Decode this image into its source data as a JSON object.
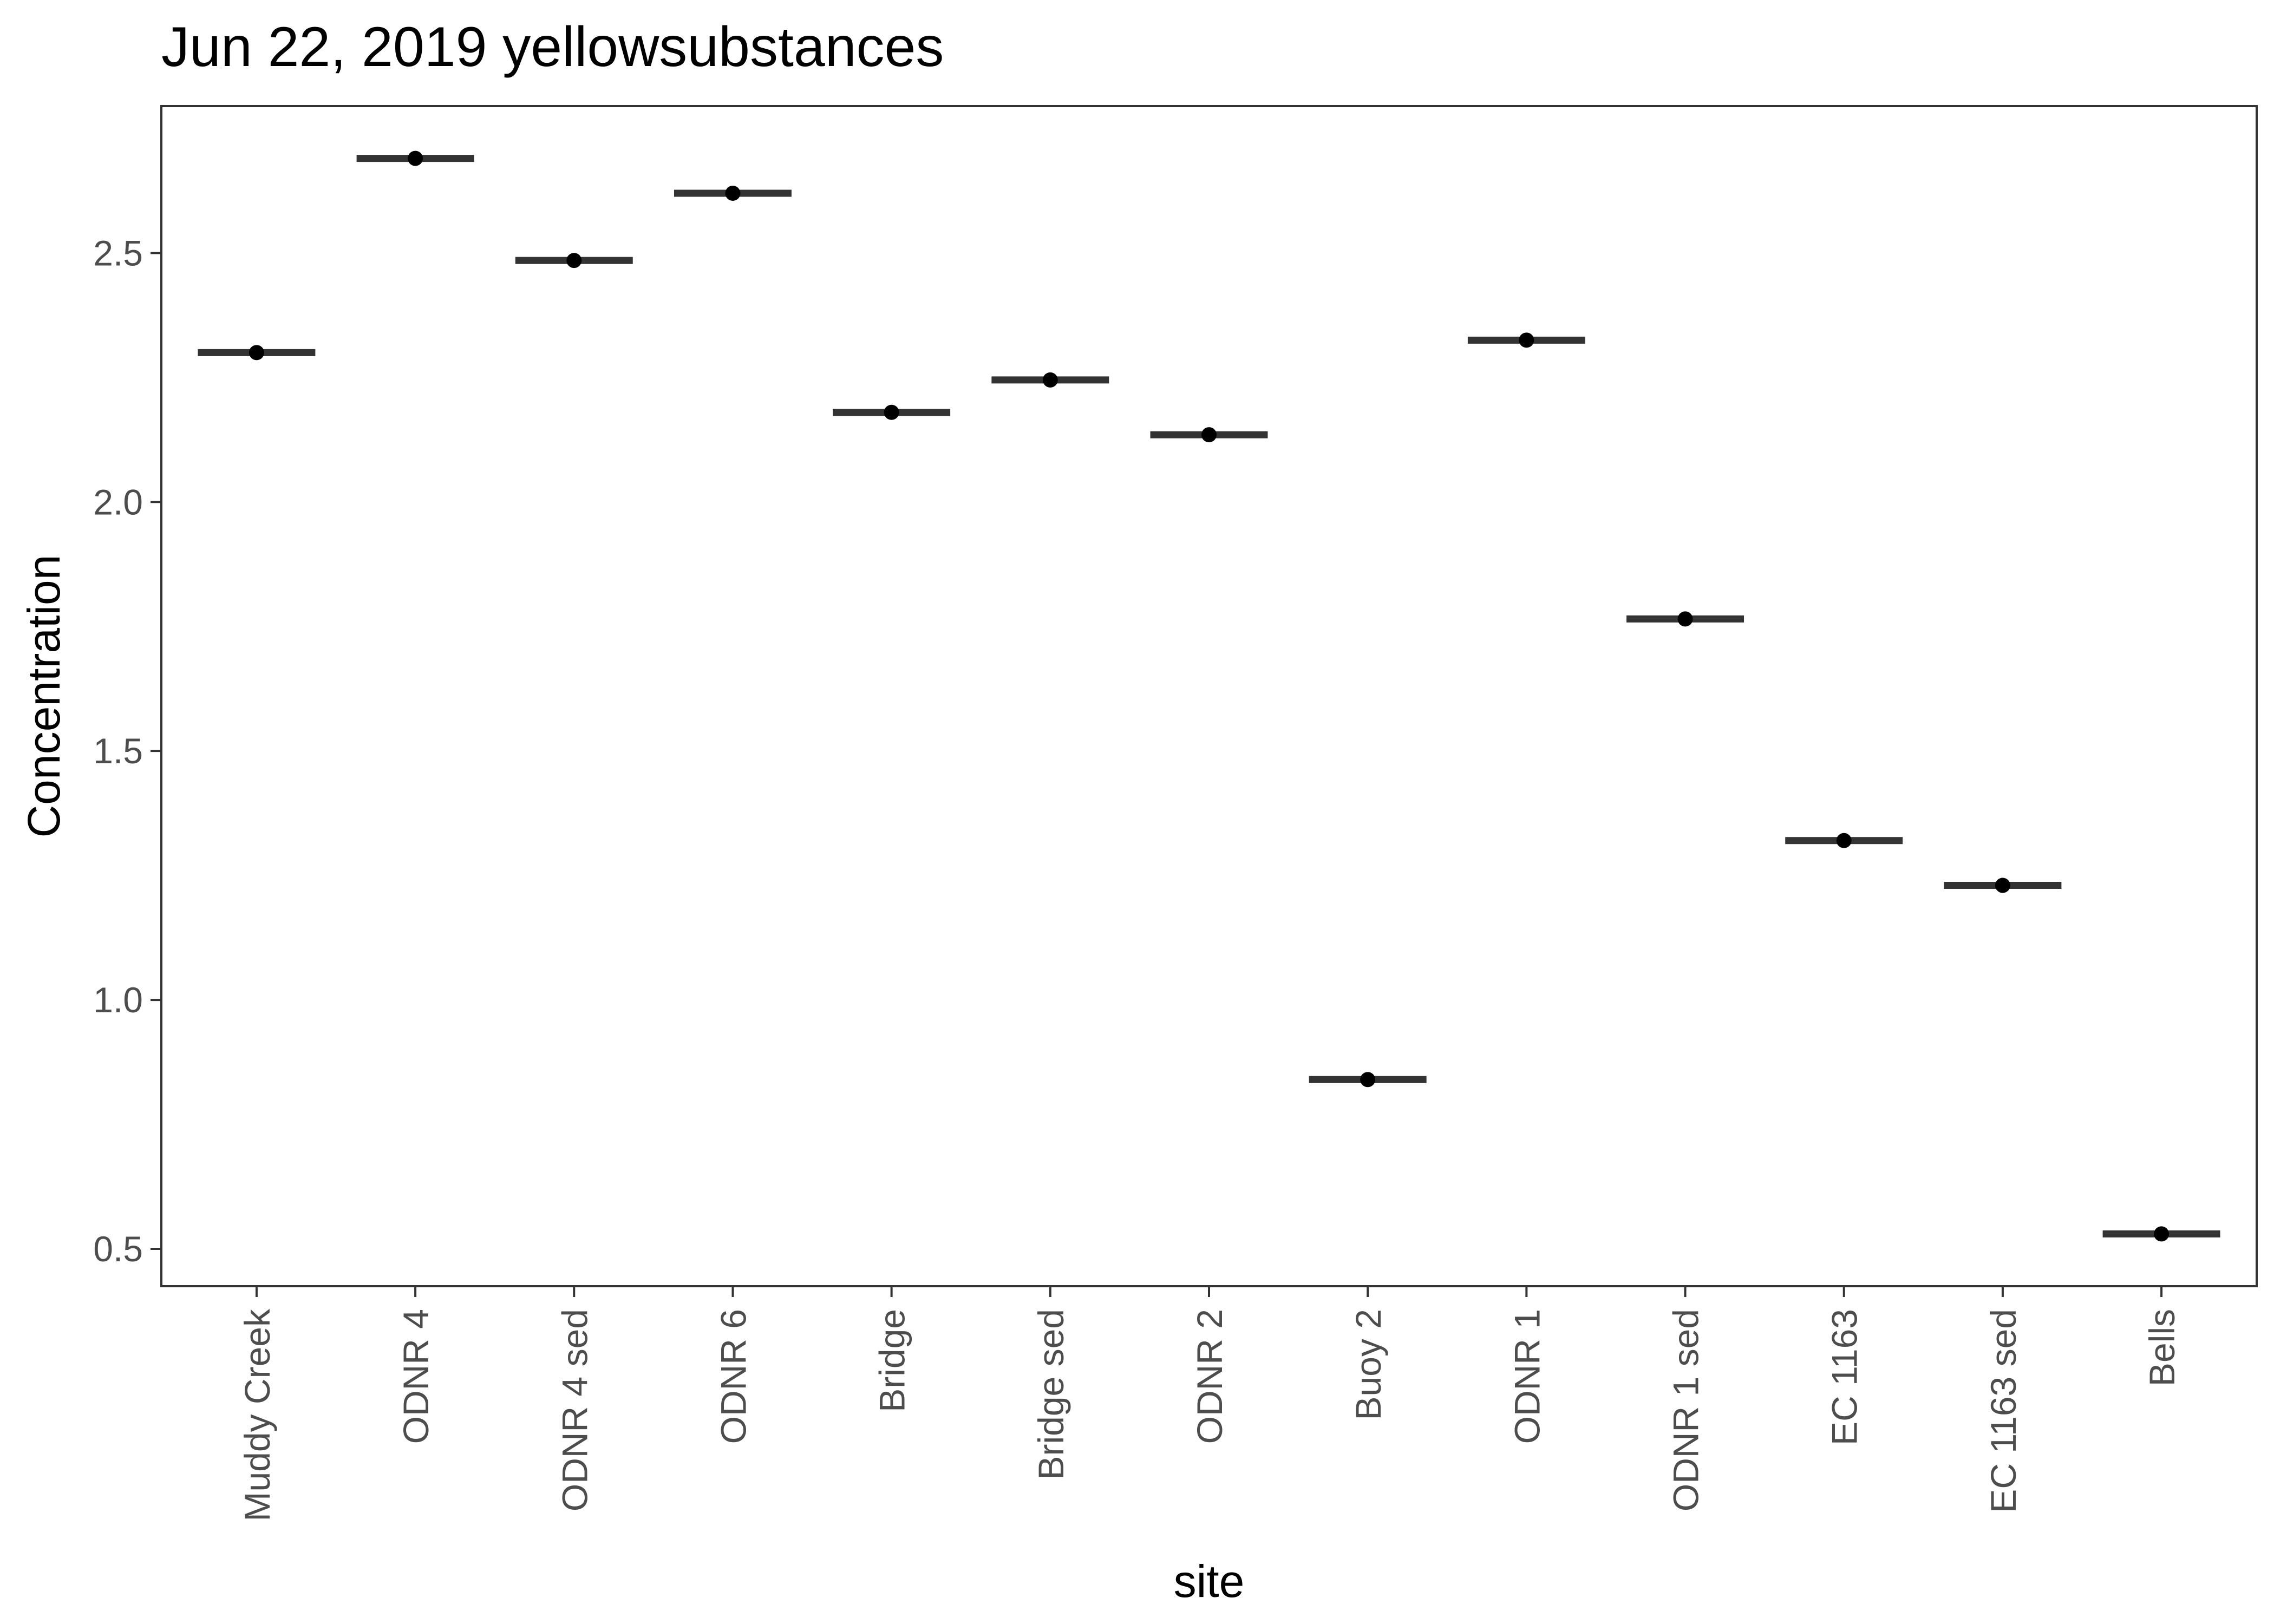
{
  "chart_data": {
    "type": "scatter",
    "title": "Jun 22, 2019 yellowsubstances",
    "xlabel": "site",
    "ylabel": "Concentration",
    "ylim": [
      0.425,
      2.795
    ],
    "yticks": [
      "0.5",
      "1.0",
      "1.5",
      "2.0",
      "2.5"
    ],
    "grid": false,
    "categories": [
      "Muddy Creek",
      "ODNR 4",
      "ODNR 4 sed",
      "ODNR 6",
      "Bridge",
      "Bridge sed",
      "ODNR 2",
      "Buoy 2",
      "ODNR 1",
      "ODNR 1 sed",
      "EC 1163",
      "EC 1163 sed",
      "Bells"
    ],
    "values": [
      2.3,
      2.69,
      2.485,
      2.62,
      2.18,
      2.245,
      2.135,
      0.84,
      2.325,
      1.765,
      1.32,
      1.23,
      0.53
    ]
  }
}
